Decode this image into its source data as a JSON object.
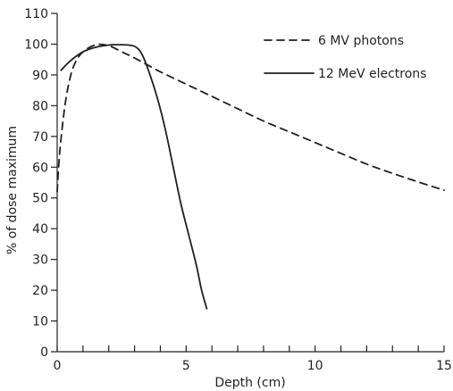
{
  "chart_data": {
    "type": "line",
    "xlabel": "Depth (cm)",
    "ylabel": "% of dose maximum",
    "xlim": [
      0,
      15
    ],
    "ylim": [
      0,
      110
    ],
    "x_ticks": [
      0,
      5,
      10,
      15
    ],
    "x_minor_step": 1,
    "y_ticks": [
      0,
      10,
      20,
      30,
      40,
      50,
      60,
      70,
      80,
      90,
      100,
      110
    ],
    "grid": false,
    "legend_position": "top-right",
    "series": [
      {
        "name": "6 MV photons",
        "style": "dashed",
        "color": "#231f20",
        "x": [
          0,
          0.1,
          0.3,
          0.5,
          0.7,
          1.0,
          1.5,
          2.0,
          2.5,
          3.0,
          4.0,
          5.0,
          6.0,
          7.0,
          8.0,
          9.0,
          10.0,
          11.0,
          12.0,
          13.0,
          14.0,
          15.0
        ],
        "y": [
          52,
          65,
          80,
          89,
          94,
          97.5,
          99.8,
          99.5,
          97.5,
          95.5,
          91,
          87,
          83,
          79,
          75,
          71.5,
          68,
          64.5,
          61,
          58,
          55.2,
          52.5
        ]
      },
      {
        "name": "12 MeV electrons",
        "style": "solid",
        "color": "#231f20",
        "x": [
          0.15,
          0.5,
          1.0,
          1.5,
          2.0,
          2.5,
          3.0,
          3.3,
          3.6,
          3.9,
          4.2,
          4.5,
          4.8,
          5.1,
          5.4,
          5.6,
          5.8
        ],
        "y": [
          91.5,
          94.5,
          97.5,
          99,
          99.7,
          99.8,
          99.3,
          96.5,
          90,
          82,
          72,
          60,
          48,
          38,
          28,
          20,
          14
        ]
      }
    ]
  }
}
